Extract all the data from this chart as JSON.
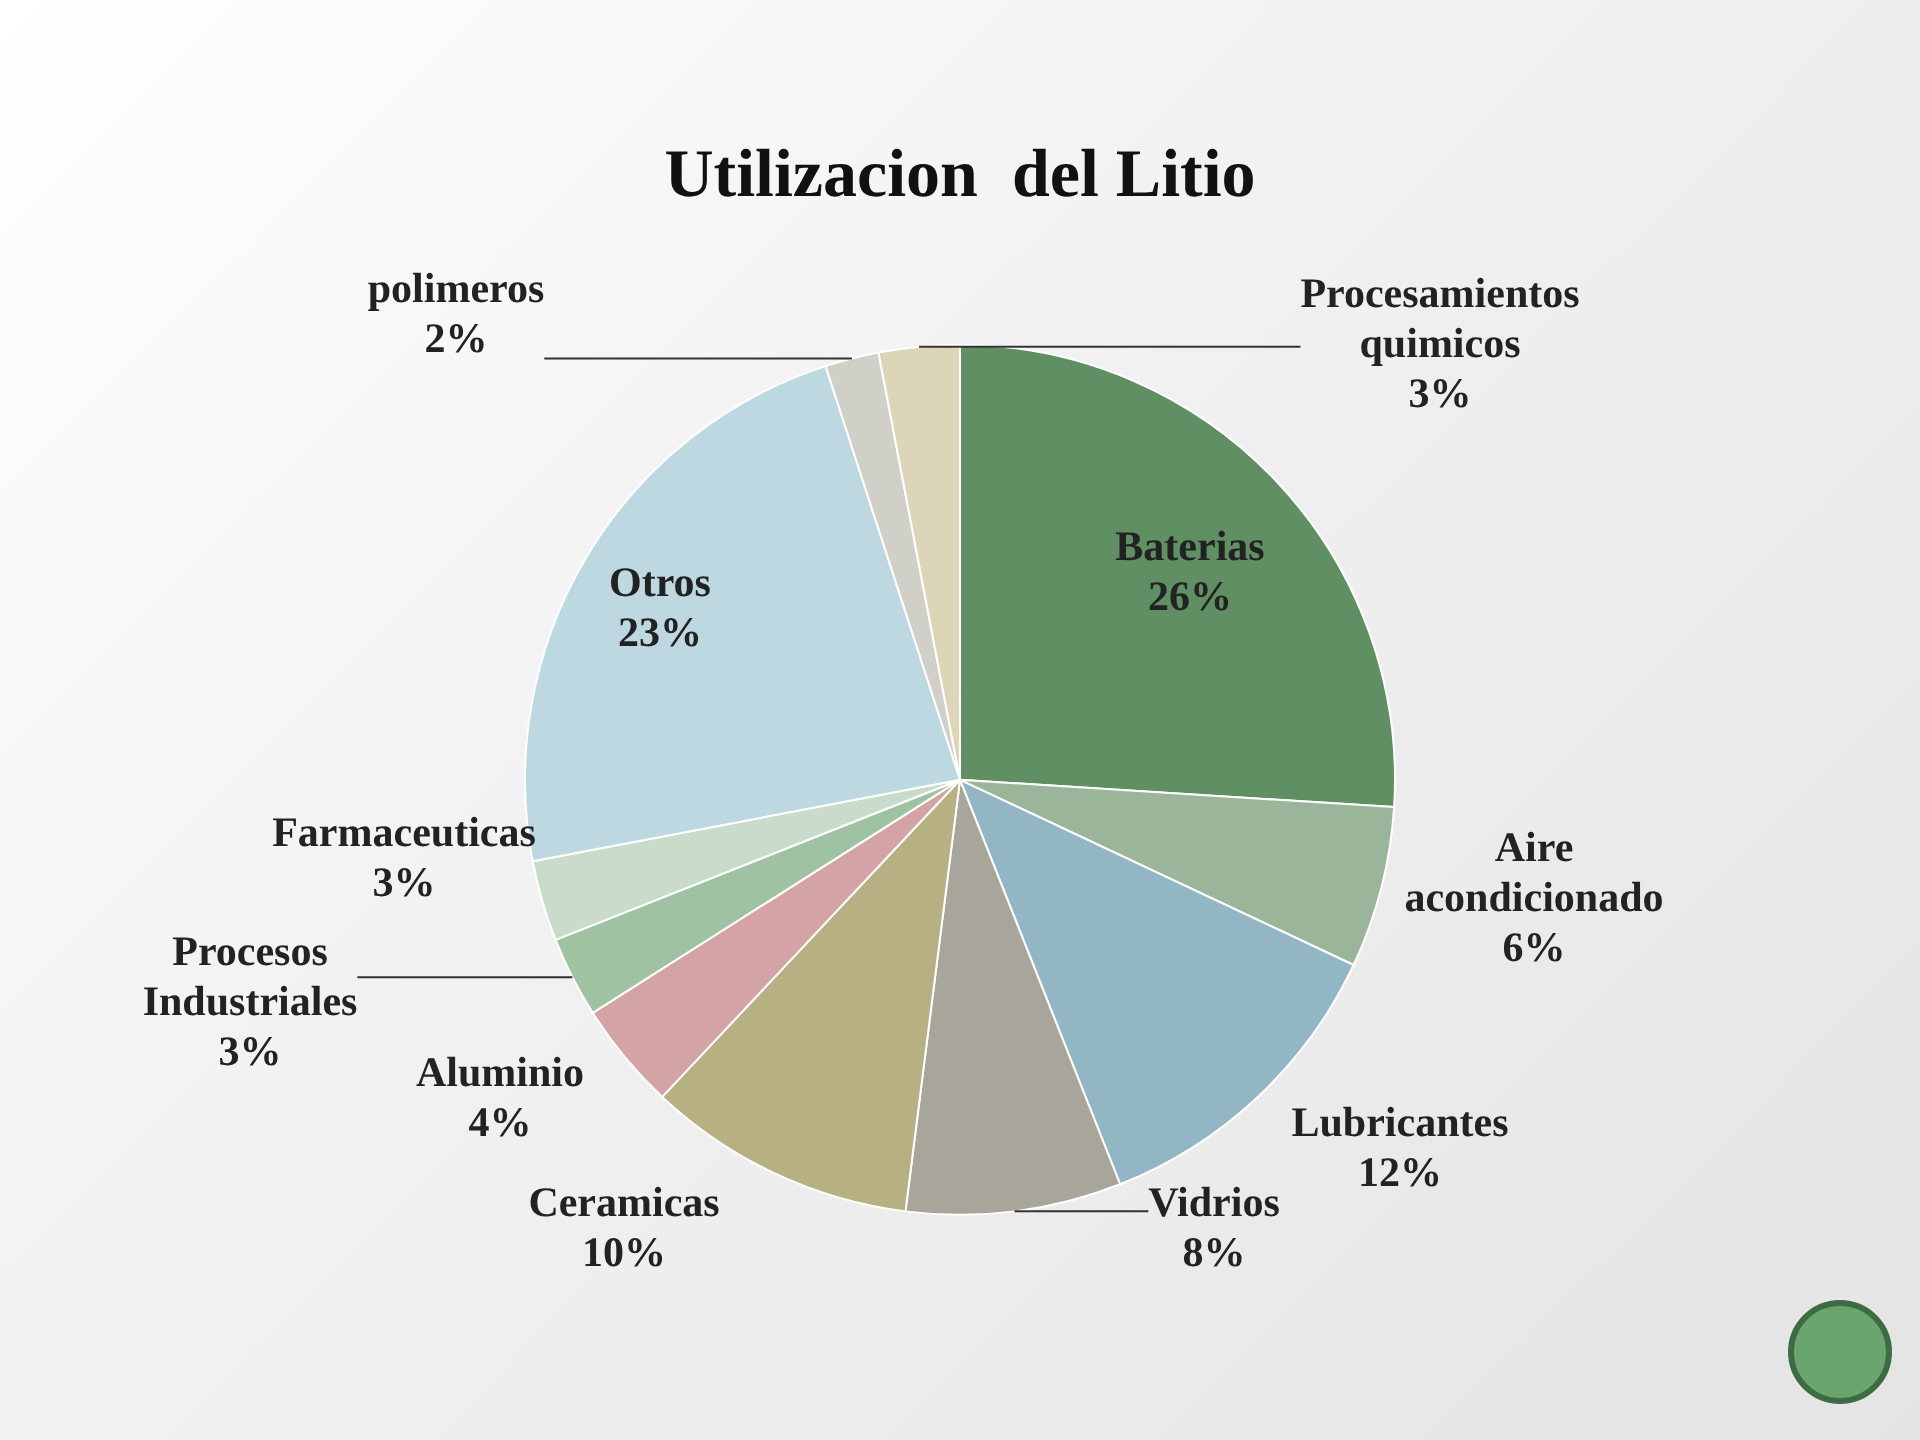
{
  "chart_data": {
    "type": "pie",
    "title": "Utilizacion  del Litio",
    "categories": [
      "Baterias",
      "Aire acondicionado",
      "Lubricantes",
      "Vidrios",
      "Ceramicas",
      "Aluminio",
      "Procesos Industriales",
      "Farmaceuticas",
      "Otros",
      "polimeros",
      "Procesamientos quimicos"
    ],
    "values": [
      26,
      6,
      12,
      8,
      10,
      4,
      3,
      3,
      23,
      2,
      3
    ],
    "value_labels": [
      "26%",
      "6%",
      "12%",
      "8%",
      "10%",
      "4%",
      "3%",
      "3%",
      "23%",
      "2%",
      "3%"
    ],
    "colors": [
      "#5f8f63",
      "#9ab59a",
      "#93b6c4",
      "#a8a59a",
      "#b6b083",
      "#d4a3a5",
      "#9ec2a2",
      "#c9dccb",
      "#bed8e2",
      "#d0d0c8",
      "#ddd5b8"
    ],
    "legend": false
  }
}
